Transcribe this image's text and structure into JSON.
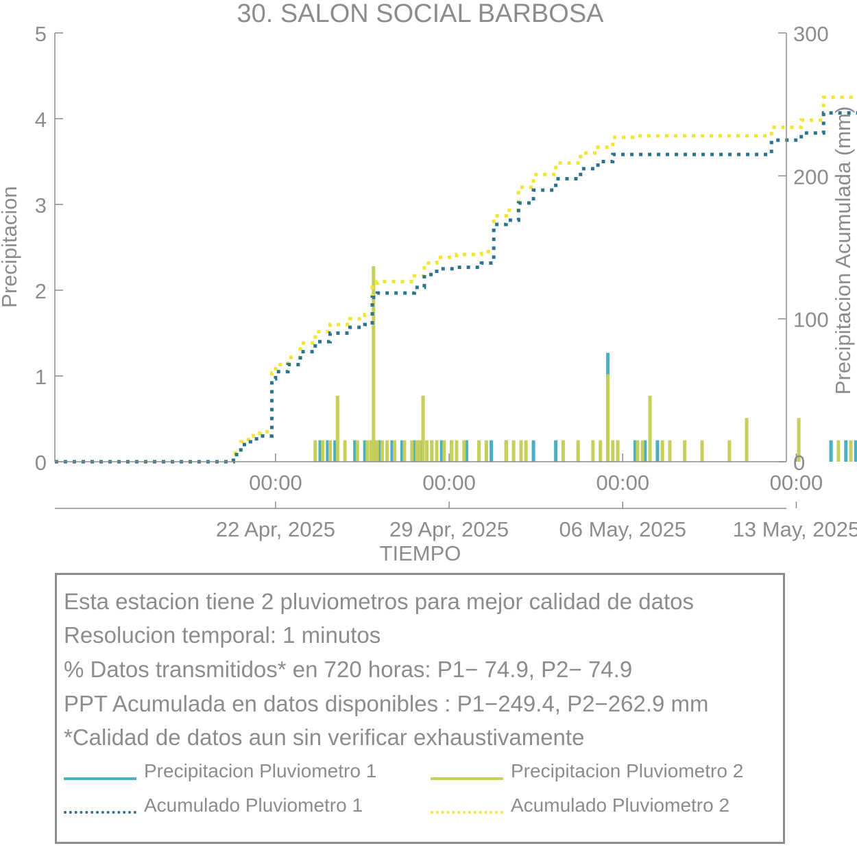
{
  "chart_data": {
    "type": "bar+line",
    "title": "30. SALON SOCIAL BARBOSA",
    "xlabel": "TIEMPO",
    "ylabel_left": "Precipitacion",
    "ylabel_right": "Precipitacion Acumulada (mm)",
    "ylim_left": [
      0,
      5
    ],
    "ylim_right": [
      0,
      300
    ],
    "yticks_left": [
      "0",
      "1",
      "2",
      "3",
      "4",
      "5"
    ],
    "yticks_right": [
      "0",
      "100",
      "200",
      "300"
    ],
    "xlim_days": [
      -8.9,
      20.6
    ],
    "xticks": [
      {
        "day": 0,
        "time": "00:00",
        "date": "22 Apr, 2025"
      },
      {
        "day": 7,
        "time": "00:00",
        "date": "29 Apr, 2025"
      },
      {
        "day": 14,
        "time": "00:00",
        "date": "06 May, 2025"
      },
      {
        "day": 21,
        "time": "00:00",
        "date": "13 May, 2025"
      }
    ],
    "colors": {
      "p1_bar": "#4aafc0",
      "p2_bar": "#c5cf5a",
      "p1_acc": "#2d7390",
      "p2_acc": "#f2e530",
      "axis": "#8c8c8c"
    },
    "series": [
      {
        "name": "Precipitacion Pluviometro 1",
        "kind": "bar",
        "points": [
          [
            1.8,
            0.25
          ],
          [
            2.1,
            0.25
          ],
          [
            2.4,
            0.25
          ],
          [
            3.2,
            0.25
          ],
          [
            3.6,
            0.25
          ],
          [
            3.9,
            0.25
          ],
          [
            4.2,
            0.25
          ],
          [
            4.7,
            0.25
          ],
          [
            5.1,
            0.25
          ],
          [
            5.6,
            0.25
          ],
          [
            5.9,
            0.25
          ],
          [
            6.3,
            0.25
          ],
          [
            6.7,
            0.25
          ],
          [
            7.1,
            0.25
          ],
          [
            7.7,
            0.25
          ],
          [
            8.7,
            0.25
          ],
          [
            9.3,
            0.25
          ],
          [
            10.4,
            0.25
          ],
          [
            11.3,
            0.25
          ],
          [
            13.4,
            1.27
          ],
          [
            14.5,
            0.25
          ],
          [
            14.9,
            0.25
          ],
          [
            15.4,
            0.25
          ],
          [
            22.4,
            0.25
          ],
          [
            23.0,
            0.25
          ],
          [
            23.4,
            0.25
          ]
        ]
      },
      {
        "name": "Precipitacion Pluviometro 2",
        "kind": "bar",
        "points": [
          [
            1.6,
            0.25
          ],
          [
            1.9,
            0.25
          ],
          [
            2.2,
            0.25
          ],
          [
            2.5,
            0.77
          ],
          [
            2.8,
            0.25
          ],
          [
            3.3,
            0.25
          ],
          [
            3.7,
            0.25
          ],
          [
            3.85,
            0.25
          ],
          [
            3.9,
            0.25
          ],
          [
            3.95,
            2.28
          ],
          [
            4.0,
            0.25
          ],
          [
            4.1,
            0.25
          ],
          [
            4.3,
            0.25
          ],
          [
            4.5,
            0.25
          ],
          [
            4.8,
            0.25
          ],
          [
            5.2,
            0.25
          ],
          [
            5.5,
            0.25
          ],
          [
            5.7,
            0.25
          ],
          [
            5.8,
            0.25
          ],
          [
            5.95,
            0.77
          ],
          [
            6.1,
            0.25
          ],
          [
            6.3,
            0.25
          ],
          [
            6.5,
            0.25
          ],
          [
            6.8,
            0.25
          ],
          [
            7.1,
            0.25
          ],
          [
            7.3,
            0.25
          ],
          [
            7.6,
            0.25
          ],
          [
            8.2,
            0.25
          ],
          [
            8.5,
            0.25
          ],
          [
            9.3,
            0.25
          ],
          [
            9.6,
            0.25
          ],
          [
            9.9,
            0.25
          ],
          [
            10.1,
            0.25
          ],
          [
            11.6,
            0.25
          ],
          [
            12.2,
            0.25
          ],
          [
            12.8,
            0.25
          ],
          [
            13.1,
            0.25
          ],
          [
            13.4,
            1.02
          ],
          [
            13.6,
            0.25
          ],
          [
            13.8,
            0.25
          ],
          [
            14.6,
            0.25
          ],
          [
            14.8,
            0.25
          ],
          [
            15.1,
            0.77
          ],
          [
            15.6,
            0.25
          ],
          [
            15.9,
            0.25
          ],
          [
            16.5,
            0.25
          ],
          [
            17.2,
            0.25
          ],
          [
            18.3,
            0.25
          ],
          [
            19.0,
            0.51
          ],
          [
            21.1,
            0.51
          ],
          [
            22.7,
            0.25
          ],
          [
            23.2,
            0.25
          ],
          [
            23.6,
            0.25
          ]
        ]
      },
      {
        "name": "Acumulado Pluviometro 1",
        "kind": "line",
        "points": [
          [
            -8.9,
            0
          ],
          [
            -2.1,
            0
          ],
          [
            -1.7,
            5
          ],
          [
            -1.4,
            12
          ],
          [
            -1.1,
            14
          ],
          [
            -0.9,
            16
          ],
          [
            -0.6,
            18
          ],
          [
            -0.2,
            18
          ],
          [
            -0.15,
            58
          ],
          [
            0.0,
            63
          ],
          [
            0.5,
            68
          ],
          [
            1.0,
            77
          ],
          [
            1.6,
            84
          ],
          [
            2.2,
            90
          ],
          [
            3.0,
            94
          ],
          [
            3.6,
            96
          ],
          [
            3.9,
            115
          ],
          [
            4.1,
            118
          ],
          [
            5.6,
            122
          ],
          [
            6.0,
            131
          ],
          [
            6.5,
            135
          ],
          [
            7.3,
            136
          ],
          [
            8.3,
            139
          ],
          [
            8.8,
            166
          ],
          [
            9.3,
            169
          ],
          [
            9.8,
            181
          ],
          [
            10.4,
            190
          ],
          [
            11.3,
            198
          ],
          [
            12.3,
            205
          ],
          [
            13.0,
            210
          ],
          [
            13.6,
            215
          ],
          [
            14.5,
            215
          ],
          [
            19.3,
            215
          ],
          [
            20.0,
            225
          ],
          [
            21.2,
            230
          ],
          [
            22.1,
            244
          ],
          [
            23.6,
            249.4
          ]
        ]
      },
      {
        "name": "Acumulado Pluviometro 2",
        "kind": "line",
        "points": [
          [
            -8.9,
            0
          ],
          [
            -2.1,
            0
          ],
          [
            -1.7,
            6
          ],
          [
            -1.4,
            14
          ],
          [
            -1.1,
            18
          ],
          [
            -0.9,
            20
          ],
          [
            -0.6,
            21
          ],
          [
            -0.2,
            21
          ],
          [
            -0.15,
            62
          ],
          [
            0.0,
            68
          ],
          [
            0.5,
            73
          ],
          [
            1.0,
            83
          ],
          [
            1.6,
            91
          ],
          [
            2.2,
            96
          ],
          [
            3.0,
            100
          ],
          [
            3.6,
            103
          ],
          [
            3.9,
            122
          ],
          [
            4.1,
            126
          ],
          [
            5.6,
            130
          ],
          [
            6.0,
            139
          ],
          [
            6.5,
            143
          ],
          [
            7.3,
            145
          ],
          [
            8.3,
            147
          ],
          [
            8.8,
            172
          ],
          [
            9.3,
            176
          ],
          [
            9.8,
            192
          ],
          [
            10.4,
            201
          ],
          [
            11.3,
            209
          ],
          [
            12.3,
            216
          ],
          [
            13.0,
            220
          ],
          [
            13.6,
            227
          ],
          [
            14.5,
            228
          ],
          [
            19.3,
            228
          ],
          [
            20.0,
            234
          ],
          [
            21.2,
            239
          ],
          [
            22.1,
            255
          ],
          [
            23.6,
            262.9
          ]
        ]
      }
    ]
  },
  "info_lines": [
    "Esta estacion tiene 2 pluviometros para mejor calidad de datos",
    "Resolucion temporal: 1 minutos",
    "% Datos transmitidos* en 720 horas: P1− 74.9, P2− 74.9",
    "PPT Acumulada en datos disponibles : P1−249.4, P2−262.9 mm",
    "*Calidad de datos aun sin verificar exhaustivamente"
  ],
  "legend": {
    "p1_precip": "Precipitacion Pluviometro 1",
    "p2_precip": "Precipitacion Pluviometro 2",
    "p1_acc": "Acumulado Pluviometro 1",
    "p2_acc": "Acumulado Pluviometro 2"
  }
}
